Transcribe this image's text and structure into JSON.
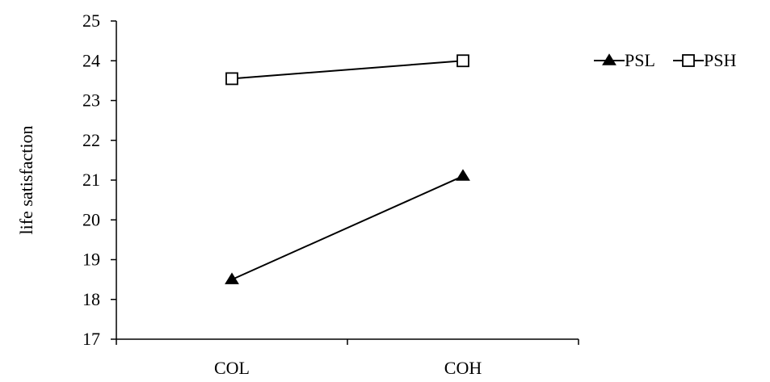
{
  "chart_data": {
    "type": "line",
    "title": "",
    "xlabel": "",
    "ylabel": "life satisfaction",
    "categories": [
      "COL",
      "COH"
    ],
    "ylim": [
      17,
      25
    ],
    "yticks": [
      17,
      18,
      19,
      20,
      21,
      22,
      23,
      24,
      25
    ],
    "grid": false,
    "legend_position": "top-right",
    "series": [
      {
        "name": "PSL",
        "marker": "filled-triangle",
        "color": "#000000",
        "values": [
          18.5,
          21.1
        ]
      },
      {
        "name": "PSH",
        "marker": "open-square",
        "color": "#000000",
        "values": [
          23.55,
          24.0
        ]
      }
    ]
  }
}
